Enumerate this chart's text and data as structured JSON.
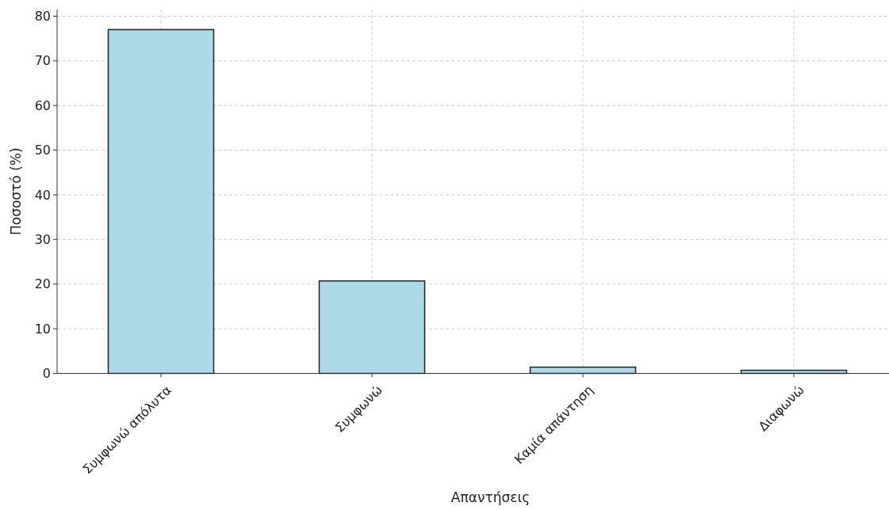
{
  "chart_data": {
    "type": "bar",
    "xlabel": "Απαντήσεις",
    "ylabel": "Ποσοστό (%)",
    "categories": [
      "Συμφωνώ απόλυτα",
      "Συμφωνώ",
      "Καμία απάντηση",
      "Διαφωνώ"
    ],
    "values": [
      77.0,
      20.7,
      1.4,
      0.7
    ],
    "color": "#add8e6",
    "ylim": [
      0,
      81.5
    ],
    "yticks": [
      0,
      10,
      20,
      30,
      40,
      50,
      60,
      70,
      80
    ],
    "grid": true
  }
}
